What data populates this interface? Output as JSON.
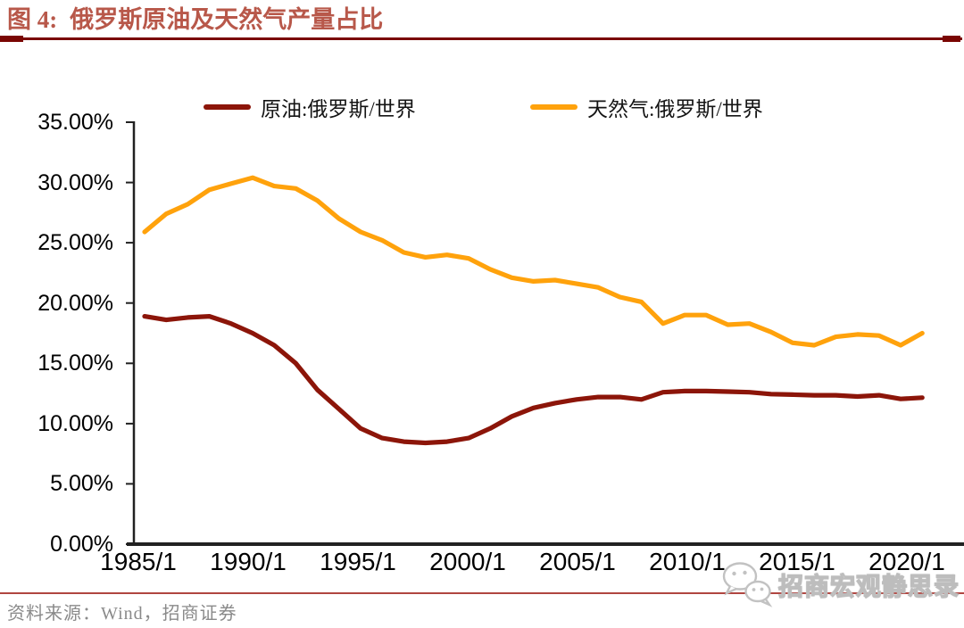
{
  "header": {
    "figure_label": "图 4:",
    "title": "俄罗斯原油及天然气产量占比"
  },
  "theme": {
    "title_color": "#b8584a",
    "header_rule_color": "#7a0603",
    "footer_rule_color": "#b04540",
    "source_color": "#8a8a8a",
    "axis_color": "#212121",
    "watermark_gray": "#c2c2c2"
  },
  "footer": {
    "source": "资料来源：Wind，招商证券"
  },
  "watermark": {
    "icon": "wechat-icon",
    "text": "招商宏观静思录"
  },
  "chart_data": {
    "type": "line",
    "title": "俄罗斯原油及天然气产量占比",
    "xlabel": "",
    "ylabel": "",
    "y_unit": "%",
    "ylim": [
      0,
      35
    ],
    "grid": false,
    "legend_position": "top-center",
    "x": [
      1985,
      1986,
      1987,
      1988,
      1989,
      1990,
      1991,
      1992,
      1993,
      1994,
      1995,
      1996,
      1997,
      1998,
      1999,
      2000,
      2001,
      2002,
      2003,
      2004,
      2005,
      2006,
      2007,
      2008,
      2009,
      2010,
      2011,
      2012,
      2013,
      2014,
      2015,
      2016,
      2017,
      2018,
      2019,
      2020,
      2021
    ],
    "x_tick_labels": [
      "1985/1",
      "1990/1",
      "1995/1",
      "2000/1",
      "2005/1",
      "2010/1",
      "2015/1",
      "2020/1"
    ],
    "y_tick_labels": [
      "35.00%",
      "30.00%",
      "25.00%",
      "20.00%",
      "15.00%",
      "10.00%",
      "5.00%",
      "0.00%"
    ],
    "series": [
      {
        "key": "oil",
        "name": "原油:俄罗斯/世界",
        "color": "#8c1509",
        "values": [
          18.9,
          18.6,
          18.8,
          18.9,
          18.3,
          17.5,
          16.5,
          15.0,
          12.8,
          11.2,
          9.6,
          8.8,
          8.5,
          8.4,
          8.5,
          8.8,
          9.6,
          10.6,
          11.3,
          11.7,
          12.0,
          12.2,
          12.2,
          12.0,
          12.6,
          12.7,
          12.7,
          12.65,
          12.6,
          12.45,
          12.4,
          12.35,
          12.35,
          12.25,
          12.35,
          12.05,
          12.15
        ]
      },
      {
        "key": "gas",
        "name": "天然气:俄罗斯/世界",
        "color": "#ffa20c",
        "values": [
          25.9,
          27.4,
          28.2,
          29.4,
          29.9,
          30.4,
          29.7,
          29.5,
          28.5,
          27.0,
          25.9,
          25.2,
          24.2,
          23.8,
          24.0,
          23.7,
          22.8,
          22.1,
          21.8,
          21.9,
          21.6,
          21.3,
          20.5,
          20.1,
          18.3,
          19.0,
          19.0,
          18.2,
          18.3,
          17.6,
          16.7,
          16.5,
          17.2,
          17.4,
          17.3,
          16.5,
          17.5
        ]
      }
    ]
  }
}
